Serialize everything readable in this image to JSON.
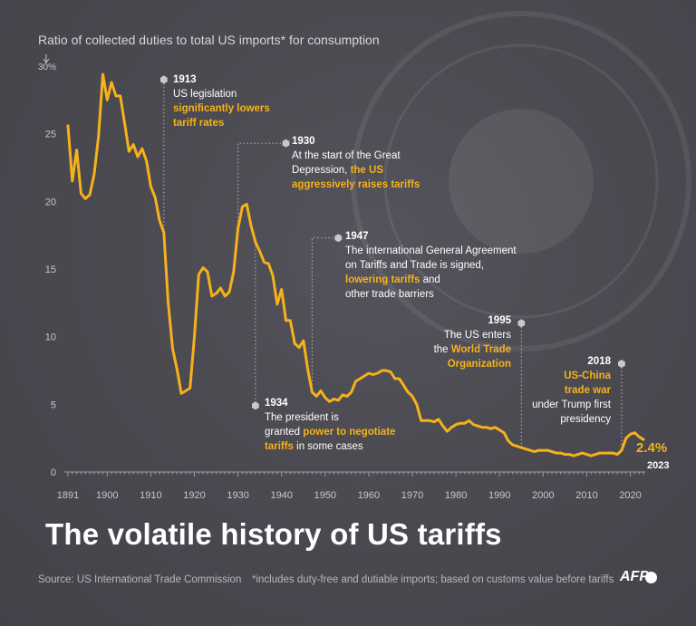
{
  "subtitle": "Ratio of collected duties to total US imports* for consumption",
  "title": "The volatile history of US tariffs",
  "source": "Source: US International Trade Commission",
  "footnote": "*includes duty-free and dutiable imports; based on customs value before tariffs",
  "logo": "AFP",
  "colors": {
    "line": "#f5b21a",
    "background": "#4a4950",
    "text": "#ffffff",
    "grid": "#8a8890"
  },
  "chart_data": {
    "type": "line",
    "ylabel_unit": "%",
    "ylim": [
      0,
      30
    ],
    "xlim": [
      1891,
      2023
    ],
    "y_ticks": [
      "30%",
      "25",
      "20",
      "15",
      "10",
      "5",
      "0"
    ],
    "y_tick_values": [
      30,
      25,
      20,
      15,
      10,
      5,
      0
    ],
    "x_ticks": [
      "1891",
      "1900",
      "1910",
      "1920",
      "1930",
      "1940",
      "1950",
      "1960",
      "1970",
      "1980",
      "1990",
      "2000",
      "2010",
      "2020"
    ],
    "x_tick_values": [
      1891,
      1900,
      1910,
      1920,
      1930,
      1940,
      1950,
      1960,
      1970,
      1980,
      1990,
      2000,
      2010,
      2020
    ],
    "series": [
      {
        "x": [
          1891,
          1892,
          1893,
          1894,
          1895,
          1896,
          1897,
          1898,
          1899,
          1900,
          1901,
          1902,
          1903,
          1904,
          1905,
          1906,
          1907,
          1908,
          1909,
          1910,
          1911,
          1912,
          1913,
          1914,
          1915,
          1916,
          1917,
          1918,
          1919,
          1920,
          1921,
          1922,
          1923,
          1924,
          1925,
          1926,
          1927,
          1928,
          1929,
          1930,
          1931,
          1932,
          1933,
          1934,
          1935,
          1936,
          1937,
          1938,
          1939,
          1940,
          1941,
          1942,
          1943,
          1944,
          1945,
          1946,
          1947,
          1948,
          1949,
          1950,
          1951,
          1952,
          1953,
          1954,
          1955,
          1956,
          1957,
          1958,
          1959,
          1960,
          1961,
          1962,
          1963,
          1964,
          1965,
          1966,
          1967,
          1968,
          1969,
          1970,
          1971,
          1972,
          1973,
          1974,
          1975,
          1976,
          1977,
          1978,
          1979,
          1980,
          1981,
          1982,
          1983,
          1984,
          1985,
          1986,
          1987,
          1988,
          1989,
          1990,
          1991,
          1992,
          1993,
          1994,
          1995,
          1996,
          1997,
          1998,
          1999,
          2000,
          2001,
          2002,
          2003,
          2004,
          2005,
          2006,
          2007,
          2008,
          2009,
          2010,
          2011,
          2012,
          2013,
          2014,
          2015,
          2016,
          2017,
          2018,
          2019,
          2020,
          2021,
          2022,
          2023
        ],
        "y": [
          25.6,
          21.5,
          23.8,
          20.6,
          20.2,
          20.5,
          22.0,
          24.8,
          29.4,
          27.5,
          28.8,
          27.8,
          27.8,
          25.8,
          23.7,
          24.2,
          23.3,
          23.9,
          23.0,
          21.1,
          20.3,
          18.6,
          17.7,
          12.5,
          9.1,
          7.6,
          5.8,
          6.0,
          6.2,
          10.0,
          14.6,
          15.1,
          14.8,
          13.0,
          13.2,
          13.6,
          13.0,
          13.3,
          14.8,
          18.0,
          19.6,
          19.8,
          18.2,
          17.0,
          16.3,
          15.5,
          15.4,
          14.5,
          12.4,
          13.5,
          11.2,
          11.2,
          9.5,
          9.2,
          9.7,
          7.6,
          5.9,
          5.6,
          6.0,
          5.5,
          5.2,
          5.4,
          5.3,
          5.7,
          5.6,
          5.9,
          6.7,
          6.9,
          7.1,
          7.3,
          7.2,
          7.3,
          7.5,
          7.5,
          7.4,
          6.9,
          6.9,
          6.4,
          5.9,
          5.6,
          5.0,
          3.8,
          3.8,
          3.8,
          3.7,
          3.9,
          3.4,
          3.0,
          3.3,
          3.5,
          3.6,
          3.6,
          3.8,
          3.5,
          3.4,
          3.3,
          3.3,
          3.2,
          3.3,
          3.1,
          2.9,
          2.3,
          2.0,
          1.9,
          1.8,
          1.7,
          1.6,
          1.5,
          1.6,
          1.6,
          1.6,
          1.5,
          1.4,
          1.4,
          1.3,
          1.3,
          1.2,
          1.3,
          1.4,
          1.3,
          1.2,
          1.3,
          1.4,
          1.4,
          1.4,
          1.4,
          1.3,
          1.6,
          2.5,
          2.8,
          2.9,
          2.6,
          2.4
        ]
      }
    ],
    "end_value_label": "2.4%",
    "end_year_label": "2023",
    "annotations": [
      {
        "year_label": "1913",
        "x": 1913,
        "y_top": 29.0,
        "lines": [
          [
            "US legislation"
          ],
          [
            "",
            "significantly lowers"
          ],
          [
            "",
            "tariff rates"
          ]
        ]
      },
      {
        "year_label": "1930",
        "x": 1930,
        "y_top": 24.5,
        "lines": [
          [
            "At the start of the Great"
          ],
          [
            "Depression, ",
            "the US"
          ],
          [
            "",
            "aggressively raises tariffs"
          ]
        ]
      },
      {
        "year_label": "1947",
        "x": 1947,
        "y_top": 17.5,
        "lines": [
          [
            "The international General Agreement"
          ],
          [
            "on Tariffs and Trade is signed,"
          ],
          [
            "",
            "lowering tariffs",
            " and"
          ],
          [
            "other trade barriers"
          ]
        ]
      },
      {
        "year_label": "1934",
        "x": 1934,
        "y_top": 5.1,
        "lines": [
          [
            "The president is"
          ],
          [
            "granted ",
            "power to negotiate"
          ],
          [
            "",
            "tariffs",
            " in some cases"
          ]
        ]
      },
      {
        "year_label": "1995",
        "x": 1995,
        "y_top": 11.0,
        "lines": [
          [
            "The US enters"
          ],
          [
            "the ",
            "World Trade"
          ],
          [
            "",
            "Organization"
          ]
        ]
      },
      {
        "year_label": "2018",
        "x": 2018,
        "y_top": 8.0,
        "lines": [
          [
            "",
            "US-China"
          ],
          [
            "",
            "trade war"
          ],
          [
            "under Trump first"
          ],
          [
            "presidency"
          ]
        ]
      }
    ]
  }
}
